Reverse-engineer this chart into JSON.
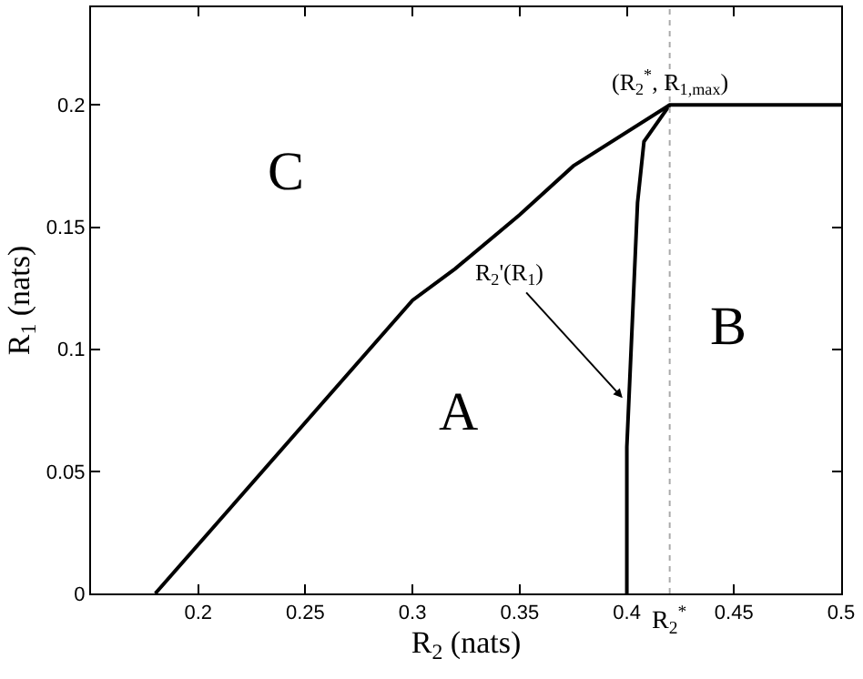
{
  "chart_data": {
    "type": "line",
    "xlabel": "R$_{2}$ (nats)",
    "ylabel": "R$_{1}$ (nats)",
    "series": [
      {
        "color": "#000000",
        "x": [
          0.18,
          0.3,
          0.32,
          0.35,
          0.375,
          0.42,
          0.5
        ],
        "values": [
          0,
          0.12,
          0.133,
          0.155,
          0.175,
          0.2,
          0.2
        ]
      },
      {
        "color": "#000000",
        "x": [
          0.4,
          0.4,
          0.401,
          0.402,
          0.405,
          0.408,
          0.42
        ],
        "values": [
          0,
          0.06,
          0.08,
          0.1,
          0.16,
          0.185,
          0.2
        ]
      }
    ],
    "xlim": [
      0.15,
      0.5
    ],
    "ylim": [
      0,
      0.24
    ],
    "xticks": [
      0.2,
      0.25,
      0.3,
      0.35,
      0.4,
      0.45,
      0.5
    ],
    "yticks": [
      0,
      0.05,
      0.1,
      0.15,
      0.2
    ],
    "ref_lines": [
      {
        "axis": "x",
        "value": 0.42,
        "label": "R$_{2}$$^{*}$",
        "color": "#aaaaaa",
        "line_style": "dotted"
      }
    ],
    "annotations": [
      "C",
      "A",
      "B",
      {
        "text": "R$_{2}$'(R$_{1}$)",
        "x": 0.398,
        "y": 0.08
      },
      {
        "text": "(R$_{2}$$^{*}$, R$_{1,max}$)",
        "x": 0.42,
        "y": 0.2
      }
    ],
    "legend": false,
    "line_style": "solid",
    "marker": "none"
  }
}
